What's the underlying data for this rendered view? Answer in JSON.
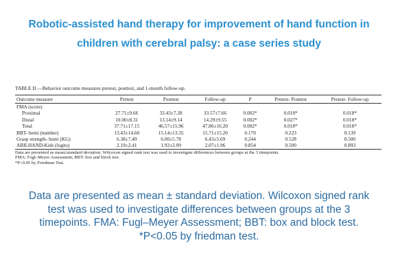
{
  "header": {
    "title": "Robotic-assisted hand therapy for improvement of hand function in children with cerebral palsy: a case series study"
  },
  "table": {
    "caption": "TABLE II.—Behavior outcome measures pretest, posttest, and 1-month follow-up.",
    "columns": [
      "Outcome measure",
      "Pretest",
      "Posttest",
      "Follow-up",
      "P",
      "Pretest- Posttest",
      "Pretest- Follow-up"
    ],
    "rows": [
      [
        "FMA (score)"
      ],
      [
        "Proximal",
        "27.71±9.66",
        "33.43±7.28",
        "33.57±7.66",
        "0.002*",
        "0.018*",
        "0.018*"
      ],
      [
        "Distal",
        "10.00±8.31",
        "13.14±9.14",
        "14.29±9.55",
        "0.002*",
        "0.027*",
        "0.018*"
      ],
      [
        "Total",
        "37.71±17.15",
        "46.57±15.96",
        "47.86±16.20",
        "0.002*",
        "0.018*",
        "0.018*"
      ],
      [
        "BBT- hemi (number)",
        "13.43±14.60",
        "15.14±13.35",
        "15.71±15.20",
        "0.170",
        "0.223",
        "0.139"
      ],
      [
        "Grasp strength- hemi (KG)",
        "6.38±7.49",
        "6.00±5.78",
        "6.43±5.69",
        "0.244",
        "0.528",
        "0.500"
      ],
      [
        "ABILHAND-Kids (logits)",
        "2.19±2.41",
        "1.92±2.09",
        "2.07±1.96",
        "0.854",
        "0.500",
        "0.893"
      ]
    ],
    "footnotes": [
      "Data are presented as mean±standard deviation. Wilcoxon signed rank test was used to investigate differences between groups at the 3 timepoints.",
      "FMA: Fugl–Meyer Assessment; BBT: box and block test.",
      "*P<0.05 by Friedman Test."
    ]
  },
  "caption": [
    "Data are presented as mean ± standard deviation. Wilcoxon signed rank test was used to investigate differences between groups at the 3 timepoints. FMA: Fugl–Meyer Assessment; BBT: box and block test.",
    "*P<0.05 by friedman test."
  ]
}
